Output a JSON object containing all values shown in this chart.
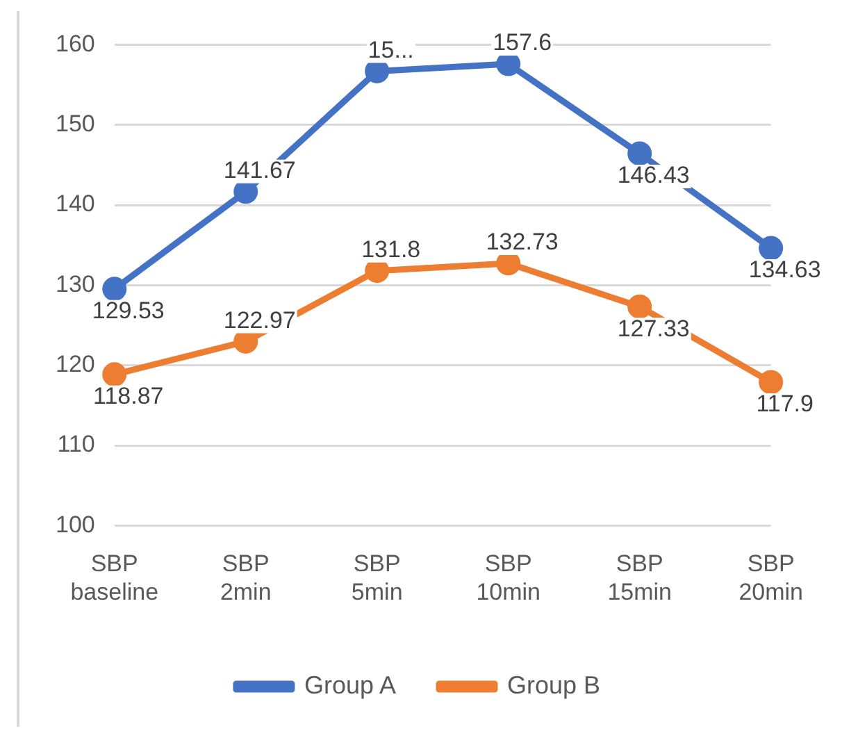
{
  "chart_data": {
    "type": "line",
    "categories": [
      "SBP baseline",
      "SBP 2min",
      "SBP 5min",
      "SBP 10min",
      "SBP 15min",
      "SBP 20min"
    ],
    "series": [
      {
        "name": "Group A",
        "color": "#4472c4",
        "values": [
          129.53,
          141.67,
          156.7,
          157.6,
          146.43,
          134.63
        ],
        "value_labels": [
          "129.53",
          "141.67",
          "15...",
          "157.6",
          "146.43",
          "134.63"
        ]
      },
      {
        "name": "Group B",
        "color": "#ed7d31",
        "values": [
          118.87,
          122.97,
          131.8,
          132.73,
          127.33,
          117.9
        ],
        "value_labels": [
          "118.87",
          "122.97",
          "131.8",
          "132.73",
          "127.33",
          "117.9"
        ]
      }
    ],
    "ylim": [
      100,
      160
    ],
    "yticks": [
      100,
      110,
      120,
      130,
      140,
      150,
      160
    ],
    "grid": "y",
    "legend": "bottom",
    "marker": "circle",
    "line_style": "solid"
  }
}
